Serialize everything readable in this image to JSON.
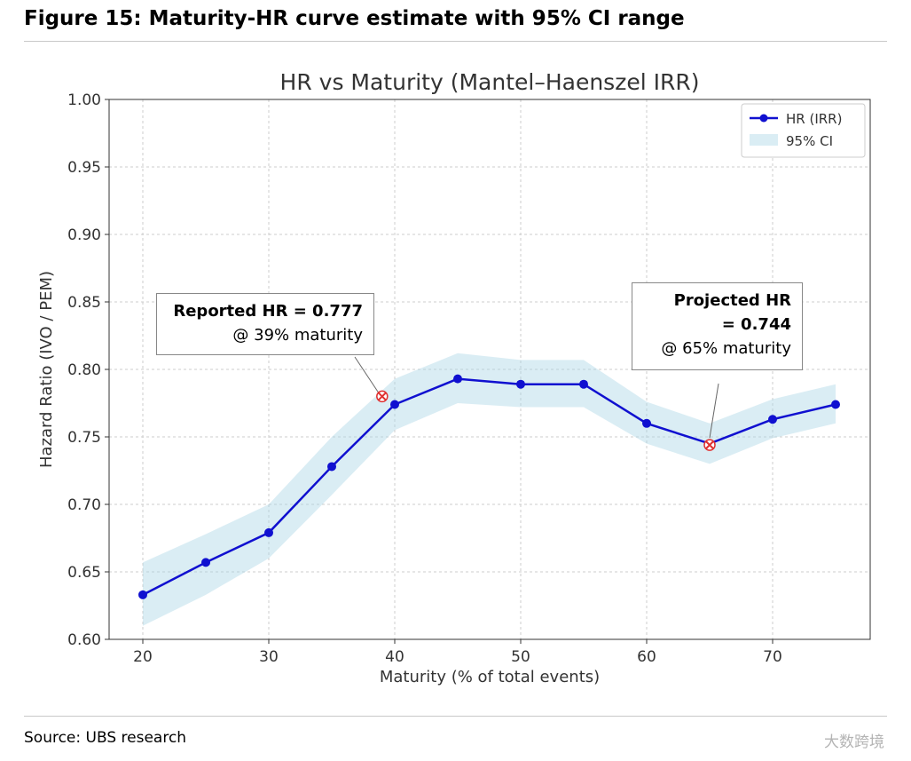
{
  "figure_title": "Figure 15: Maturity-HR curve estimate with 95% CI range",
  "source": "Source: UBS research",
  "watermark": "大数跨境",
  "chart_data": {
    "type": "line",
    "title": "HR vs Maturity (Mantel–Haenszel IRR)",
    "xlabel": "Maturity (% of total events)",
    "ylabel": "Hazard Ratio (IVO / PEM)",
    "xlim": [
      17,
      77.5
    ],
    "ylim": [
      0.6,
      1.0
    ],
    "xticks": [
      "20",
      "30",
      "40",
      "50",
      "60",
      "70"
    ],
    "yticks": [
      "0.60",
      "0.65",
      "0.70",
      "0.75",
      "0.80",
      "0.85",
      "0.90",
      "0.95",
      "1.00"
    ],
    "grid": true,
    "legend_position": "top-right",
    "legend": [
      "HR (IRR)",
      "95% CI"
    ],
    "colors": {
      "line": "#1010d0",
      "ci": "#add8e6",
      "marker": "#e03030"
    },
    "x": [
      20,
      25,
      30,
      35,
      40,
      45,
      50,
      55,
      60,
      65,
      70,
      75
    ],
    "series": [
      {
        "name": "HR (IRR)",
        "values": [
          0.633,
          0.657,
          0.679,
          0.728,
          0.774,
          0.793,
          0.789,
          0.789,
          0.76,
          0.745,
          0.763,
          0.774
        ]
      },
      {
        "name": "95% CI upper",
        "values": [
          0.657,
          0.678,
          0.7,
          0.75,
          0.793,
          0.812,
          0.807,
          0.807,
          0.776,
          0.76,
          0.778,
          0.789
        ]
      },
      {
        "name": "95% CI lower",
        "values": [
          0.61,
          0.633,
          0.66,
          0.707,
          0.755,
          0.775,
          0.772,
          0.772,
          0.745,
          0.73,
          0.749,
          0.76
        ]
      }
    ],
    "annotations": [
      {
        "line1": "Reported HR = 0.777",
        "line2": "@ 39% maturity",
        "x": 39,
        "y": 0.78
      },
      {
        "line1": "Projected HR",
        "line1b": "= 0.744",
        "line2": "@ 65% maturity",
        "x": 65,
        "y": 0.744
      }
    ]
  }
}
